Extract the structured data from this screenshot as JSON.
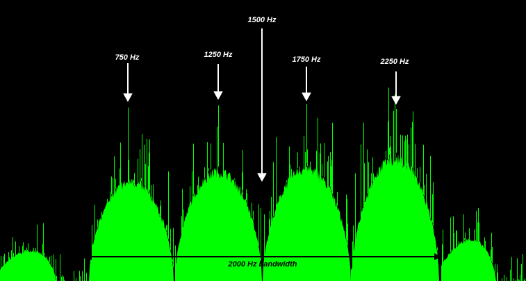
{
  "markers": [
    "750 Hz",
    "1250 Hz",
    "1500 Hz",
    "1750 Hz",
    "2250 Hz"
  ],
  "bandwidth_label": "2000 Hz bandwidth"
}
